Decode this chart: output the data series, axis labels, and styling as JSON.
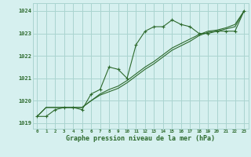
{
  "title": "Graphe pression niveau de la mer (hPa)",
  "background_color": "#d6f0ef",
  "grid_color": "#aad4d0",
  "line_color": "#2d6a2d",
  "x_values": [
    0,
    1,
    2,
    3,
    4,
    5,
    6,
    7,
    8,
    9,
    10,
    11,
    12,
    13,
    14,
    15,
    16,
    17,
    18,
    19,
    20,
    21,
    22,
    23
  ],
  "series1": [
    1019.3,
    1019.3,
    1019.6,
    1019.7,
    1019.7,
    1019.6,
    1020.3,
    1020.5,
    1021.5,
    1021.4,
    1021.0,
    1022.5,
    1023.1,
    1023.3,
    1023.3,
    1023.6,
    1023.4,
    1023.3,
    1023.0,
    1023.0,
    1023.1,
    1023.1,
    1023.1,
    1024.0
  ],
  "series2": [
    1019.3,
    1019.7,
    1019.7,
    1019.7,
    1019.7,
    1019.7,
    1020.0,
    1020.25,
    1020.4,
    1020.55,
    1020.8,
    1021.1,
    1021.4,
    1021.65,
    1021.95,
    1022.25,
    1022.45,
    1022.65,
    1022.9,
    1023.05,
    1023.1,
    1023.2,
    1023.3,
    1024.0
  ],
  "series3": [
    1019.3,
    1019.7,
    1019.7,
    1019.7,
    1019.7,
    1019.7,
    1020.0,
    1020.3,
    1020.5,
    1020.65,
    1020.9,
    1021.2,
    1021.5,
    1021.75,
    1022.05,
    1022.35,
    1022.55,
    1022.75,
    1022.95,
    1023.1,
    1023.15,
    1023.25,
    1023.4,
    1024.0
  ],
  "ylim_min": 1018.75,
  "ylim_max": 1024.35,
  "yticks": [
    1019,
    1020,
    1021,
    1022,
    1023,
    1024
  ]
}
